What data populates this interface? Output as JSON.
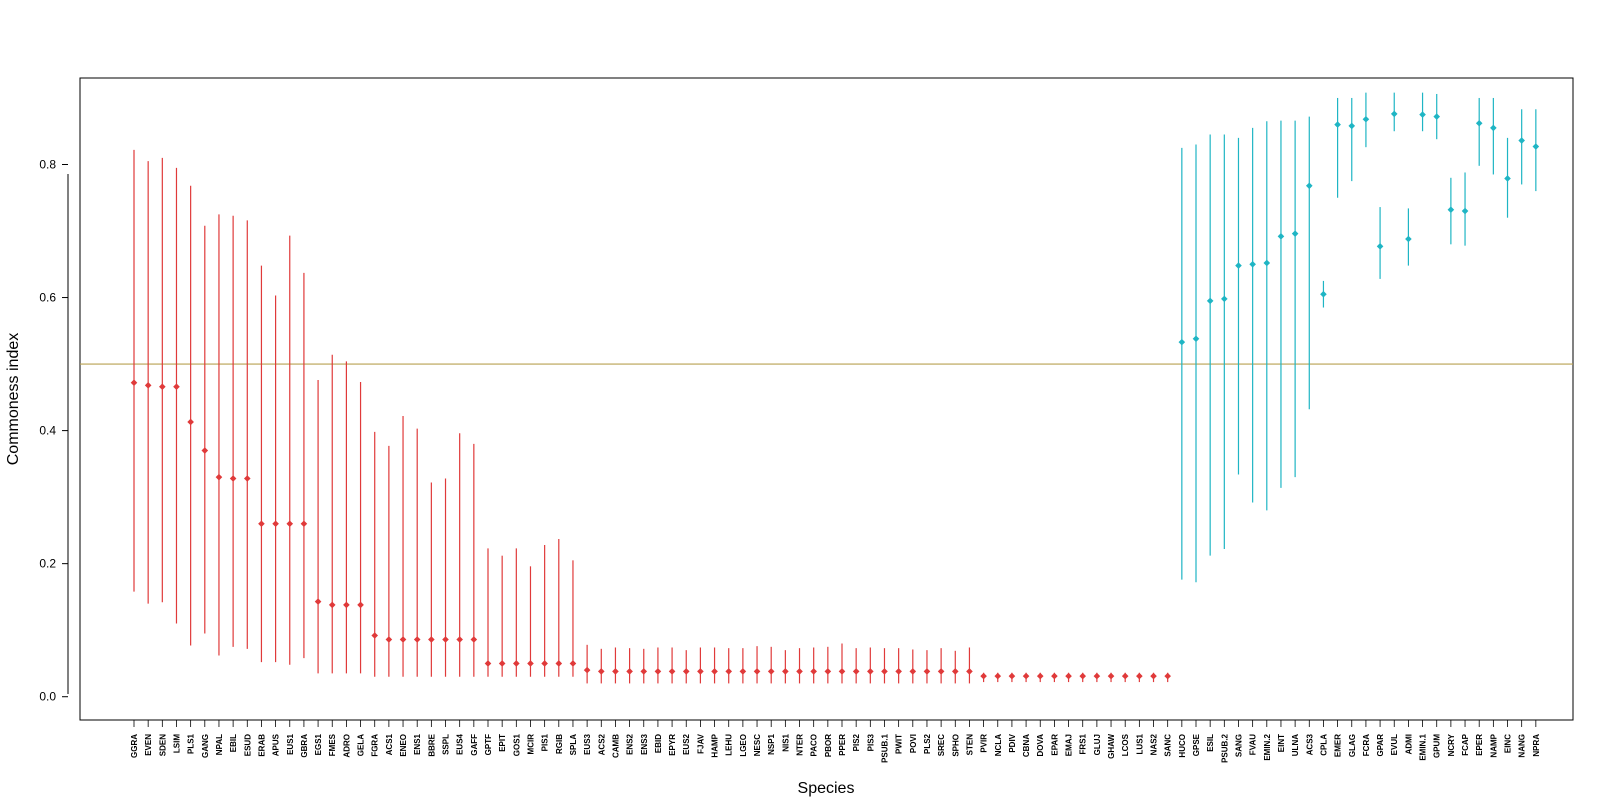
{
  "chart_data": {
    "type": "scatter",
    "xlabel": "Species",
    "ylabel": "Commoness index",
    "ylim": [
      -0.035,
      0.93
    ],
    "yticks": [
      0.0,
      0.2,
      0.4,
      0.6,
      0.8
    ],
    "ytick_labels": [
      "0.0",
      "0.2",
      "0.4",
      "0.6",
      "0.8"
    ],
    "reference_line": 0.5,
    "colors": {
      "group_low": "#e03a3a",
      "group_high": "#1fb5c4",
      "reference_line": "#b8a050",
      "frame": "#000000"
    },
    "series": [
      {
        "categories": [
          "GGRA",
          "EVEN",
          "SDEN",
          "LSIM",
          "PLS1",
          "GANG",
          "NPAL",
          "EBIL",
          "ESUD",
          "ERAB",
          "APUS",
          "EUS1",
          "GBRA",
          "EGS1",
          "FMES",
          "ADRO",
          "GELA",
          "FGRA",
          "ACS1",
          "ENEO",
          "ENS1",
          "BBRE",
          "SSPL",
          "EUS4",
          "GAFF",
          "GPTF",
          "EPIT",
          "GOS1",
          "MCIR",
          "PIS1",
          "RGIB",
          "SPLA",
          "EUS3",
          "ACS2",
          "CAMB",
          "ENS2",
          "ENS3",
          "EBID",
          "EPYR",
          "EUS2",
          "FJAV",
          "HAMP",
          "LEHU",
          "LGEO",
          "NESC",
          "NSP1",
          "NIS1",
          "NTER",
          "PACO",
          "PBOR",
          "PPER",
          "PIS2",
          "PIS3",
          "PSUB.1",
          "PWIT",
          "POVI",
          "PLS2",
          "SREC",
          "SPHO",
          "STEN",
          "PVIR",
          "NCLA",
          "PDIV",
          "CBNA",
          "DOVA",
          "EPAR",
          "EMAJ",
          "FRS1",
          "GLUJ",
          "GHAW",
          "LCOS",
          "LUS1",
          "NAS2",
          "SANC"
        ],
        "values": [
          0.472,
          0.468,
          0.466,
          0.466,
          0.413,
          0.37,
          0.33,
          0.328,
          0.328,
          0.26,
          0.26,
          0.26,
          0.26,
          0.143,
          0.138,
          0.138,
          0.138,
          0.092,
          0.086,
          0.086,
          0.086,
          0.086,
          0.086,
          0.086,
          0.086,
          0.05,
          0.05,
          0.05,
          0.05,
          0.05,
          0.05,
          0.05,
          0.04,
          0.038,
          0.038,
          0.038,
          0.038,
          0.038,
          0.038,
          0.038,
          0.038,
          0.038,
          0.038,
          0.038,
          0.038,
          0.038,
          0.038,
          0.038,
          0.038,
          0.038,
          0.038,
          0.038,
          0.038,
          0.038,
          0.038,
          0.038,
          0.038,
          0.038,
          0.038,
          0.038,
          0.031,
          0.031,
          0.031,
          0.031,
          0.031,
          0.031,
          0.031,
          0.031,
          0.031,
          0.031,
          0.031,
          0.031,
          0.031,
          0.031
        ],
        "lower": [
          0.158,
          0.14,
          0.142,
          0.11,
          0.077,
          0.095,
          0.062,
          0.075,
          0.072,
          0.052,
          0.052,
          0.048,
          0.058,
          0.035,
          0.035,
          0.035,
          0.035,
          0.03,
          0.03,
          0.03,
          0.03,
          0.03,
          0.03,
          0.03,
          0.03,
          0.03,
          0.03,
          0.03,
          0.03,
          0.03,
          0.03,
          0.03,
          0.02,
          0.02,
          0.02,
          0.02,
          0.02,
          0.02,
          0.02,
          0.02,
          0.02,
          0.02,
          0.02,
          0.02,
          0.02,
          0.02,
          0.02,
          0.02,
          0.02,
          0.02,
          0.02,
          0.02,
          0.02,
          0.02,
          0.02,
          0.02,
          0.02,
          0.02,
          0.02,
          0.02,
          0.022,
          0.022,
          0.022,
          0.022,
          0.022,
          0.022,
          0.022,
          0.022,
          0.022,
          0.022,
          0.022,
          0.022,
          0.022,
          0.022
        ],
        "upper": [
          0.822,
          0.805,
          0.81,
          0.795,
          0.768,
          0.708,
          0.725,
          0.723,
          0.716,
          0.648,
          0.603,
          0.693,
          0.637,
          0.476,
          0.514,
          0.504,
          0.473,
          0.398,
          0.377,
          0.422,
          0.403,
          0.322,
          0.328,
          0.396,
          0.38,
          0.223,
          0.212,
          0.223,
          0.196,
          0.228,
          0.237,
          0.205,
          0.078,
          0.072,
          0.074,
          0.073,
          0.072,
          0.074,
          0.074,
          0.07,
          0.074,
          0.074,
          0.073,
          0.073,
          0.076,
          0.075,
          0.07,
          0.073,
          0.074,
          0.075,
          0.08,
          0.073,
          0.074,
          0.073,
          0.073,
          0.071,
          0.07,
          0.073,
          0.069,
          0.074,
          0.036,
          0.036,
          0.036,
          0.036,
          0.036,
          0.036,
          0.036,
          0.036,
          0.036,
          0.036,
          0.036,
          0.036,
          0.036,
          0.036
        ]
      },
      {
        "categories": [
          "HUCO",
          "GPSE",
          "ESIL",
          "PSUB.2",
          "SANG",
          "FVAU",
          "EMIN.2",
          "EINT",
          "ULNA",
          "ACS3",
          "CPLA",
          "EMER",
          "GLAG",
          "FCRA",
          "GPAR",
          "EVUL",
          "ADMI",
          "EMIN.1",
          "GPUM",
          "NCRY",
          "FCAP",
          "EPER",
          "NAMP",
          "EINC",
          "NANG",
          "NPRA"
        ],
        "values": [
          0.533,
          0.538,
          0.595,
          0.598,
          0.648,
          0.65,
          0.652,
          0.692,
          0.696,
          0.768,
          0.605,
          0.86,
          0.858,
          0.868,
          0.677,
          0.876,
          0.688,
          0.875,
          0.872,
          0.732,
          0.73,
          0.862,
          0.855,
          0.779,
          0.836,
          0.827
        ],
        "lower": [
          0.176,
          0.172,
          0.212,
          0.222,
          0.334,
          0.292,
          0.28,
          0.314,
          0.33,
          0.432,
          0.585,
          0.75,
          0.775,
          0.826,
          0.628,
          0.85,
          0.648,
          0.85,
          0.838,
          0.68,
          0.678,
          0.798,
          0.785,
          0.72,
          0.77,
          0.76
        ],
        "upper": [
          0.825,
          0.83,
          0.845,
          0.845,
          0.84,
          0.855,
          0.865,
          0.866,
          0.866,
          0.872,
          0.625,
          0.9,
          0.9,
          0.908,
          0.736,
          0.908,
          0.734,
          0.908,
          0.906,
          0.78,
          0.788,
          0.9,
          0.9,
          0.84,
          0.883,
          0.883
        ]
      }
    ]
  }
}
